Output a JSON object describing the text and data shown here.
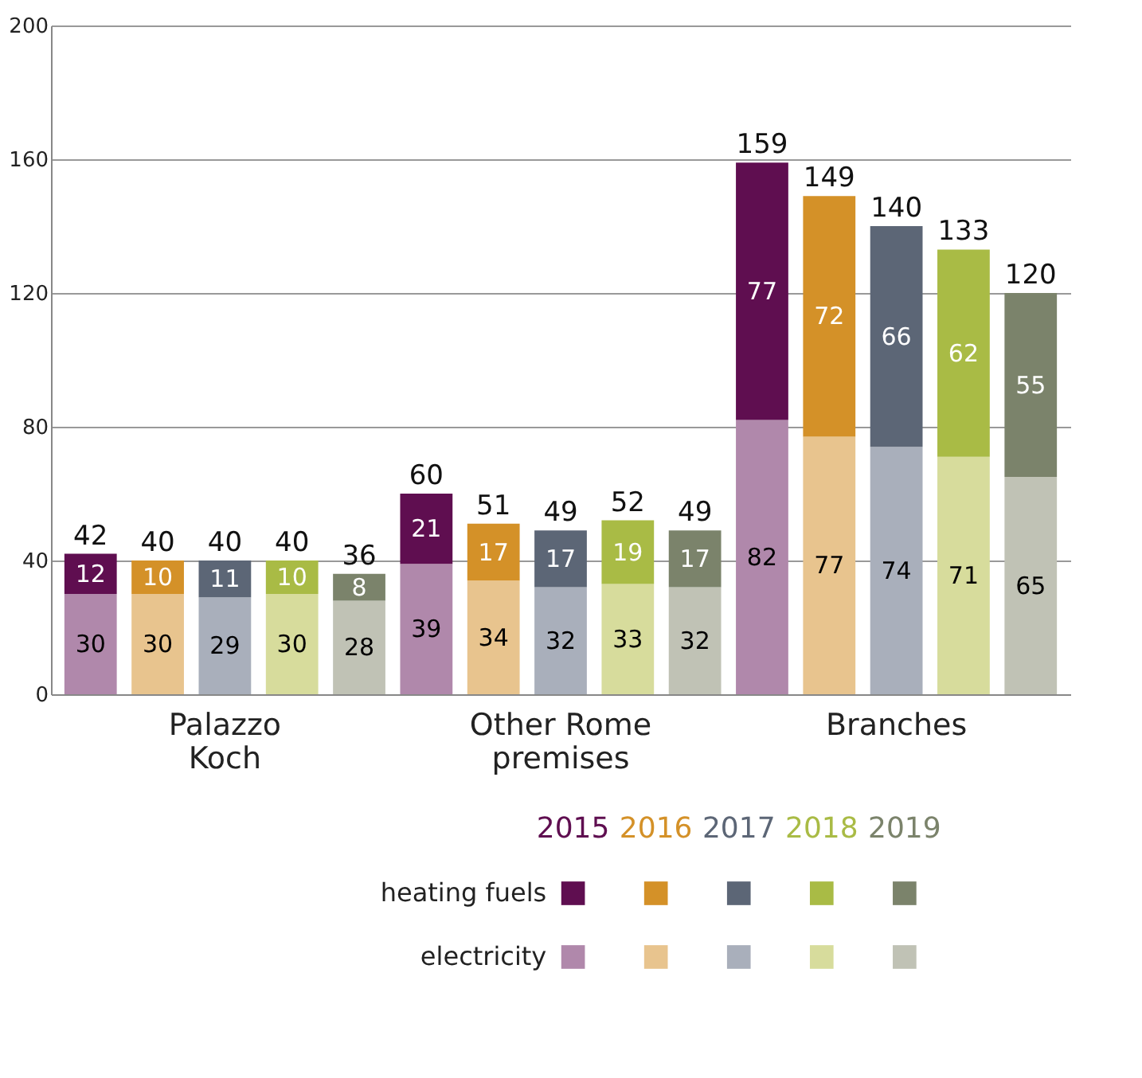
{
  "chart_data": {
    "type": "bar",
    "stacked": true,
    "categories": [
      null,
      null,
      "Palazzo\nKoch",
      null,
      null,
      null,
      null,
      "Other Rome\npremises",
      null,
      null,
      null,
      null,
      "Branches",
      null,
      null
    ],
    "series": [
      {
        "name": "electricity",
        "colors": [
          "#b088ab",
          "#e8c48e",
          "#a9afbb",
          "#d7dc9c",
          "#c0c2b5",
          "#b088ab",
          "#e8c48e",
          "#a9afbb",
          "#d7dc9c",
          "#c0c2b5",
          "#b088ab",
          "#e8c48e",
          "#a9afbb",
          "#d7dc9c",
          "#c0c2b5"
        ],
        "values": [
          30,
          30,
          29,
          30,
          28,
          39,
          34,
          32,
          33,
          32,
          82,
          77,
          74,
          71,
          65
        ]
      },
      {
        "name": "heating fuels",
        "colors": [
          "#5f0e50",
          "#d49128",
          "#5c6676",
          "#a9bb45",
          "#7b836b",
          "#5f0e50",
          "#d49128",
          "#5c6676",
          "#a9bb45",
          "#7b836b",
          "#5f0e50",
          "#d49128",
          "#5c6676",
          "#a9bb45",
          "#7b836b"
        ],
        "values": [
          12,
          10,
          11,
          10,
          8,
          21,
          17,
          17,
          19,
          17,
          77,
          72,
          66,
          62,
          55
        ]
      }
    ],
    "annotations": [
      "2015",
      "2016",
      "2017",
      "2018",
      "2019"
    ],
    "totals": [
      "42",
      "40",
      "40",
      "40",
      "36",
      "60",
      "51",
      "49",
      "52",
      "49",
      "159",
      "149",
      "140",
      "133",
      "120"
    ],
    "data_labels": true,
    "ylim": [
      0,
      200
    ],
    "yticks": [
      0,
      40,
      80,
      120,
      160,
      200
    ],
    "grid": "y",
    "legend": "bottom"
  }
}
